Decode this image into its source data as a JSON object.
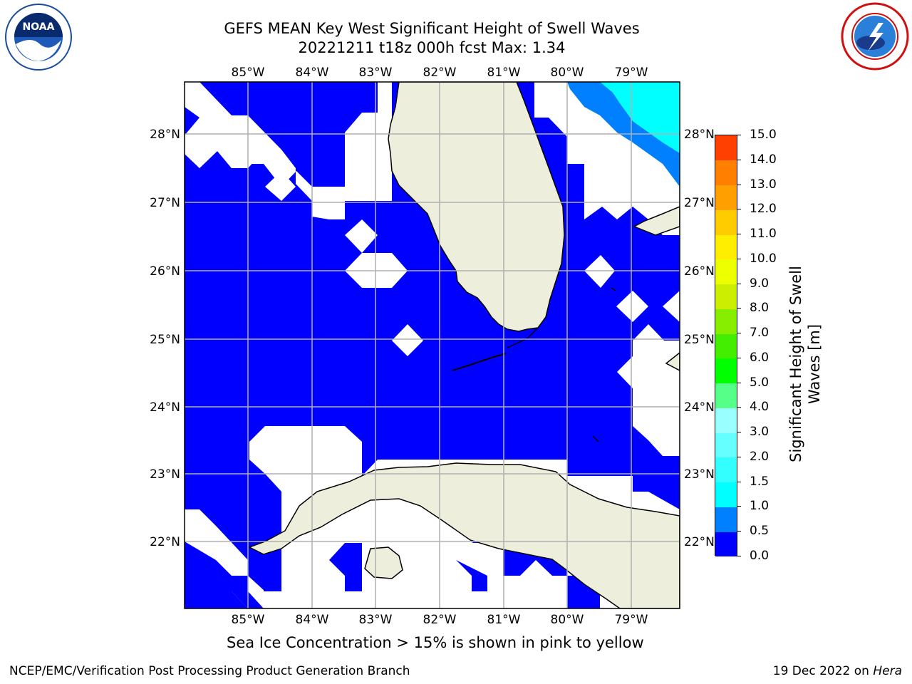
{
  "title_line1": "GEFS MEAN Key West Significant Height of Swell Waves",
  "title_line2": "20221211 t18z 000h fcst   Max: 1.34",
  "lon_ticks": [
    "85°W",
    "84°W",
    "83°W",
    "82°W",
    "81°W",
    "80°W",
    "79°W"
  ],
  "lat_ticks": [
    "28°N",
    "27°N",
    "26°N",
    "25°N",
    "24°N",
    "23°N",
    "22°N"
  ],
  "colorbar": {
    "label_line1": "Significant Height of Swell",
    "label_line2": "Waves [m]",
    "levels": [
      "0.0",
      "0.5",
      "1.0",
      "1.5",
      "2.0",
      "3.0",
      "4.0",
      "5.0",
      "6.0",
      "7.0",
      "8.0",
      "9.0",
      "10.0",
      "11.0",
      "12.0",
      "13.0",
      "14.0",
      "15.0"
    ],
    "colors": [
      "#0000ff",
      "#0080ff",
      "#00ffff",
      "#33ffff",
      "#66ffff",
      "#99ffff",
      "#55ff88",
      "#00ff00",
      "#44ee00",
      "#88ee00",
      "#ccee00",
      "#eeff00",
      "#ffee00",
      "#ffcc00",
      "#ffa000",
      "#ff8000",
      "#ff4000",
      "#ff0000"
    ]
  },
  "note": "Sea Ice Concentration > 15% is shown in pink to yellow",
  "credit": "NCEP/EMC/Verification Post Processing Product Generation Branch",
  "date_prefix": "19 Dec 2022 on ",
  "date_host": "Hera",
  "logo_noaa_text": "NOAA",
  "colors": {
    "ocean_swell": "#0000ff",
    "land": "#eeeedd",
    "grid": "#b0b0b0"
  }
}
